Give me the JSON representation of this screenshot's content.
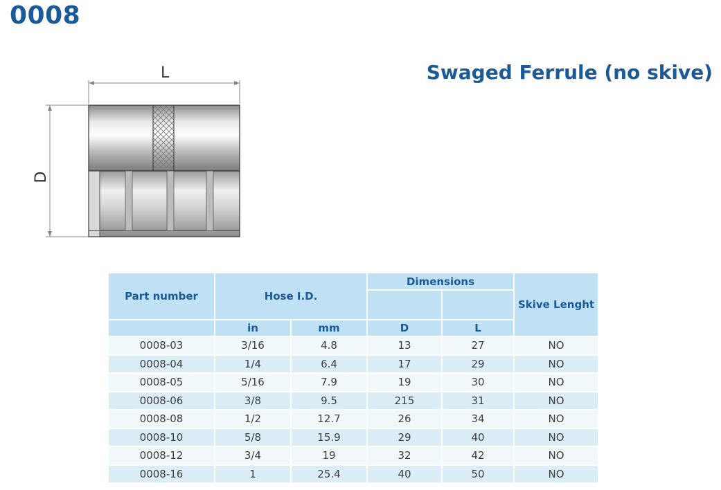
{
  "header": {
    "code": "0008",
    "product_title": "Swaged Ferrule (no skive)"
  },
  "drawing": {
    "length_label": "L",
    "diameter_label": "D"
  },
  "table": {
    "headers": {
      "part_number": "Part number",
      "hose_id": "Hose I.D.",
      "dimensions": "Dimensions",
      "skive_length": "Skive Lenght",
      "in": "in",
      "mm": "mm",
      "d": "D",
      "l": "L"
    },
    "rows": [
      [
        "0008-03",
        "3/16",
        "4.8",
        "13",
        "27",
        "NO"
      ],
      [
        "0008-04",
        "1/4",
        "6.4",
        "17",
        "29",
        "NO"
      ],
      [
        "0008-05",
        "5/16",
        "7.9",
        "19",
        "30",
        "NO"
      ],
      [
        "0008-06",
        "3/8",
        "9.5",
        "215",
        "31",
        "NO"
      ],
      [
        "0008-08",
        "1/2",
        "12.7",
        "26",
        "34",
        "NO"
      ],
      [
        "0008-10",
        "5/8",
        "15.9",
        "29",
        "40",
        "NO"
      ],
      [
        "0008-12",
        "3/4",
        "19",
        "32",
        "42",
        "NO"
      ],
      [
        "0008-16",
        "1",
        "25.4",
        "40",
        "50",
        "NO"
      ]
    ]
  }
}
